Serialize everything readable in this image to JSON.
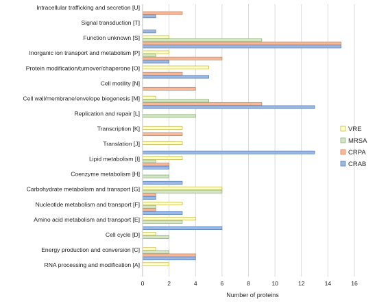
{
  "chart_data": {
    "type": "bar",
    "orientation": "horizontal",
    "xlabel": "Number of proteins",
    "ylabel": "",
    "title": "",
    "xlim": [
      0,
      16
    ],
    "xticks": [
      "0",
      "2",
      "4",
      "6",
      "8",
      "10",
      "12",
      "14",
      "16"
    ],
    "grid": "vertical",
    "legend_position": "right",
    "categories": [
      "Intracellular trafficking and secretion [U]",
      "Signal transduction [T]",
      "Function unknown [S]",
      "Inorganic ion transport and metabolism [P]",
      "Protein modification/turnover/chaperone [O]",
      "Cell motility [N]",
      "Cell wall/membrane/envelope biogenesis [M]",
      "Replication and repair [L]",
      "Transcription [K]",
      "Translation [J]",
      "Lipid metabolism [I]",
      "Coenzyme metabolism [H]",
      "Carbohydrate metabolism and transport [G]",
      "Nucleotide metabolism and transport [F]",
      "Amino acid metabolism and transport [E]",
      "Cell cycle [D]",
      "Energy production and conversion [C]",
      "RNA processing and modification [A]"
    ],
    "series": [
      {
        "name": "VRE",
        "color": "#ffffcc",
        "stroke": "#c9b94a",
        "values": [
          0,
          0,
          2,
          2,
          5,
          0,
          1,
          0,
          3,
          3,
          3,
          0,
          6,
          3,
          4,
          1,
          1,
          2
        ]
      },
      {
        "name": "MRSA",
        "color": "#d3e6c4",
        "stroke": "#8fb27a",
        "values": [
          0,
          0,
          9,
          1,
          0,
          0,
          5,
          4,
          0,
          0,
          1,
          2,
          6,
          1,
          3,
          2,
          2,
          0
        ]
      },
      {
        "name": "CRPA",
        "color": "#f5b99a",
        "stroke": "#d9845a",
        "values": [
          3,
          0,
          15,
          6,
          3,
          4,
          9,
          0,
          3,
          0,
          2,
          0,
          1,
          1,
          0,
          0,
          4,
          0
        ]
      },
      {
        "name": "CRAB",
        "color": "#9db8e0",
        "stroke": "#5b82c0",
        "values": [
          1,
          1,
          15,
          2,
          5,
          0,
          13,
          0,
          0,
          13,
          2,
          3,
          1,
          3,
          6,
          0,
          4,
          0
        ]
      }
    ]
  }
}
